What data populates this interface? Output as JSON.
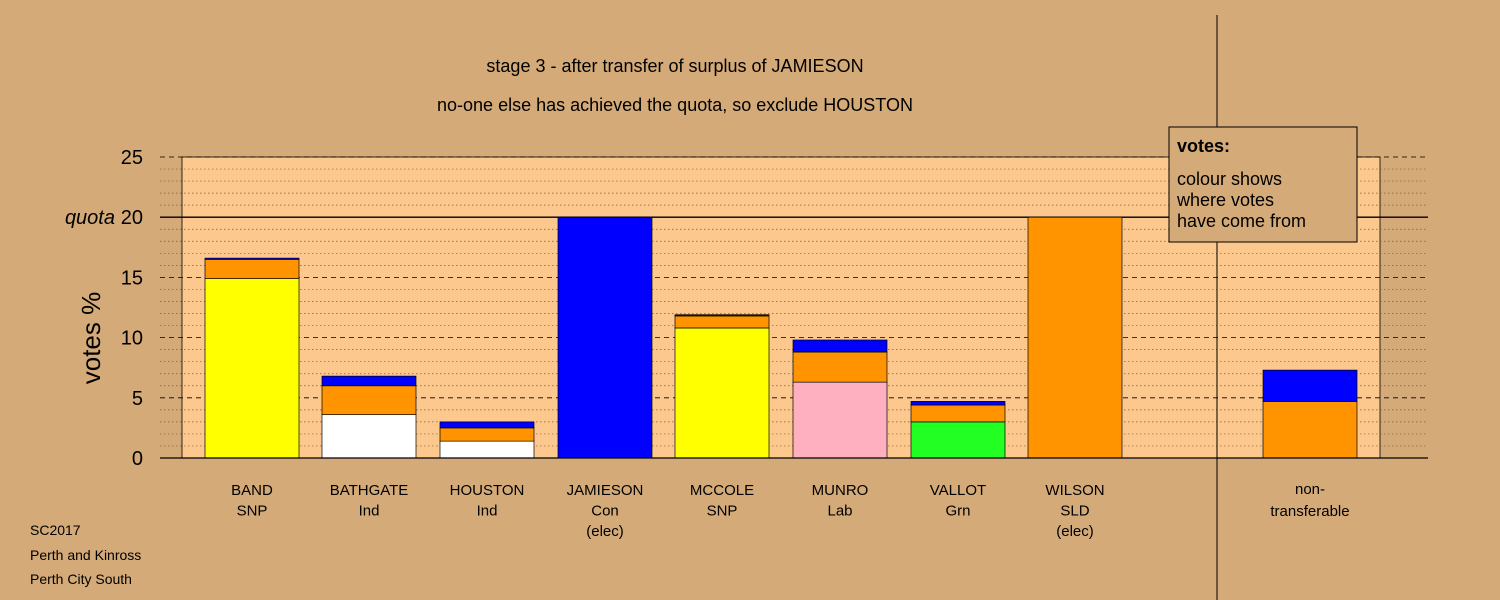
{
  "colors": {
    "background": "#d4aa78",
    "plot_background": "#fdc88e",
    "snp": "#ffff00",
    "ind_bathgate": "#ffffff",
    "ind_houston": "#ffffff",
    "con": "#0000ff",
    "lab": "#ffb0c0",
    "grn": "#22ff22",
    "sld": "#ff9400"
  },
  "chart_data": {
    "type": "bar",
    "stacked": true,
    "title": "stage 3 - after transfer of surplus of JAMIESON",
    "subtitle": "no-one else has achieved the quota, so exclude HOUSTON",
    "ylabel": "votes %",
    "ylim": [
      0,
      25
    ],
    "yticks": [
      "0",
      "5",
      "10",
      "15",
      "20",
      "25"
    ],
    "quota": 20,
    "quota_label": "quota",
    "grid": true,
    "categories": [
      {
        "name": "BAND",
        "party": "SNP",
        "note": ""
      },
      {
        "name": "BATHGATE",
        "party": "Ind",
        "note": ""
      },
      {
        "name": "HOUSTON",
        "party": "Ind",
        "note": ""
      },
      {
        "name": "JAMIESON",
        "party": "Con",
        "note": "(elec)"
      },
      {
        "name": "MCCOLE",
        "party": "SNP",
        "note": ""
      },
      {
        "name": "MUNRO",
        "party": "Lab",
        "note": ""
      },
      {
        "name": "VALLOT",
        "party": "Grn",
        "note": ""
      },
      {
        "name": "WILSON",
        "party": "SLD",
        "note": "(elec)"
      }
    ],
    "bars": [
      {
        "segments": [
          {
            "from": "SNP",
            "color": "#ffff00",
            "value": 14.9
          },
          {
            "from": "SLD",
            "color": "#ff9400",
            "value": 1.6
          },
          {
            "from": "Con",
            "color": "#0000ff",
            "value": 0.1
          }
        ]
      },
      {
        "segments": [
          {
            "from": "Ind",
            "color": "#ffffff",
            "value": 3.6
          },
          {
            "from": "SLD",
            "color": "#ff9400",
            "value": 2.4
          },
          {
            "from": "Con",
            "color": "#0000ff",
            "value": 0.8
          }
        ]
      },
      {
        "segments": [
          {
            "from": "Ind",
            "color": "#ffffff",
            "value": 1.4
          },
          {
            "from": "SLD",
            "color": "#ff9400",
            "value": 1.1
          },
          {
            "from": "Con",
            "color": "#0000ff",
            "value": 0.5
          }
        ]
      },
      {
        "segments": [
          {
            "from": "Con",
            "color": "#0000ff",
            "value": 20.0
          }
        ]
      },
      {
        "segments": [
          {
            "from": "SNP",
            "color": "#ffff00",
            "value": 10.8
          },
          {
            "from": "SLD",
            "color": "#ff9400",
            "value": 1.0
          },
          {
            "from": "Con",
            "color": "#0000ff",
            "value": 0.1
          }
        ]
      },
      {
        "segments": [
          {
            "from": "Lab",
            "color": "#ffb0c0",
            "value": 6.3
          },
          {
            "from": "SLD",
            "color": "#ff9400",
            "value": 2.5
          },
          {
            "from": "Con",
            "color": "#0000ff",
            "value": 1.0
          }
        ]
      },
      {
        "segments": [
          {
            "from": "Grn",
            "color": "#22ff22",
            "value": 3.0
          },
          {
            "from": "SLD",
            "color": "#ff9400",
            "value": 1.4
          },
          {
            "from": "Con",
            "color": "#0000ff",
            "value": 0.3
          }
        ]
      },
      {
        "segments": [
          {
            "from": "SLD",
            "color": "#ff9400",
            "value": 20.0
          }
        ]
      }
    ],
    "non_transferable": {
      "label_line1": "non-",
      "label_line2": "transferable",
      "segments": [
        {
          "from": "SLD",
          "color": "#ff9400",
          "value": 4.7
        },
        {
          "from": "Con",
          "color": "#0000ff",
          "value": 2.6
        }
      ]
    },
    "legend": {
      "position": "top-right",
      "title": "votes:",
      "lines": [
        "colour shows",
        "where votes",
        "have come from"
      ]
    }
  },
  "footer": {
    "line1": "SC2017",
    "line2": "Perth and Kinross",
    "line3": "Perth City South"
  }
}
